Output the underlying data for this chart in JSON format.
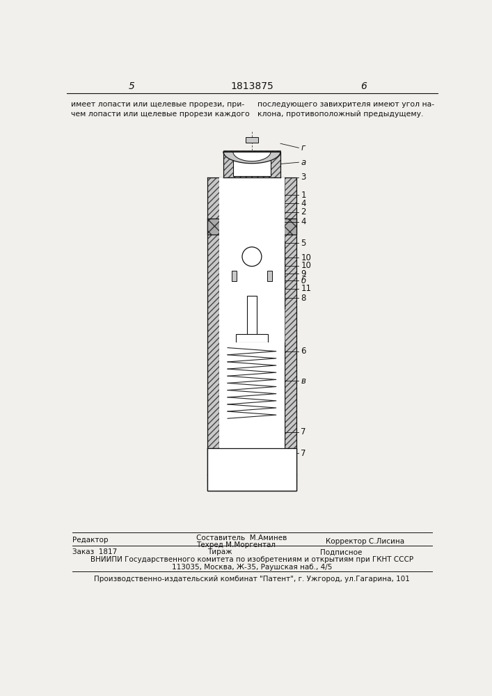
{
  "page_bg": "#f2f0ec",
  "line_color": "#111111",
  "hatch_color": "#333333",
  "page_num_left": "5",
  "page_num_center": "1813875",
  "page_num_right": "6",
  "text_left": "имеет лопасти или щелевые прорези, при-\nчем лопасти или щелевые прорези каждого",
  "text_right": "последующего завихрителя имеют угол на-\nклона, противоположный предыдущему.",
  "footer_editor": "Редактор",
  "footer_compiler": "Составитель  М.Аминев",
  "footer_techred": "Техред М.Моргентал",
  "footer_corrector": "Корректор С.Лисина",
  "footer_order": "Заказ  1817",
  "footer_circ": "Тираж",
  "footer_sign": "Подписное",
  "footer_vniip": "ВНИИПИ Государственного комитета по изобретениям и открытиям при ГКНТ СССР",
  "footer_addr": "113035, Москва, Ж-35, Раушская наб., 4/5",
  "footer_plant": "Производственно-издательский комбинат \"Патент\", г. Ужгород, ул.Гагарина, 101"
}
